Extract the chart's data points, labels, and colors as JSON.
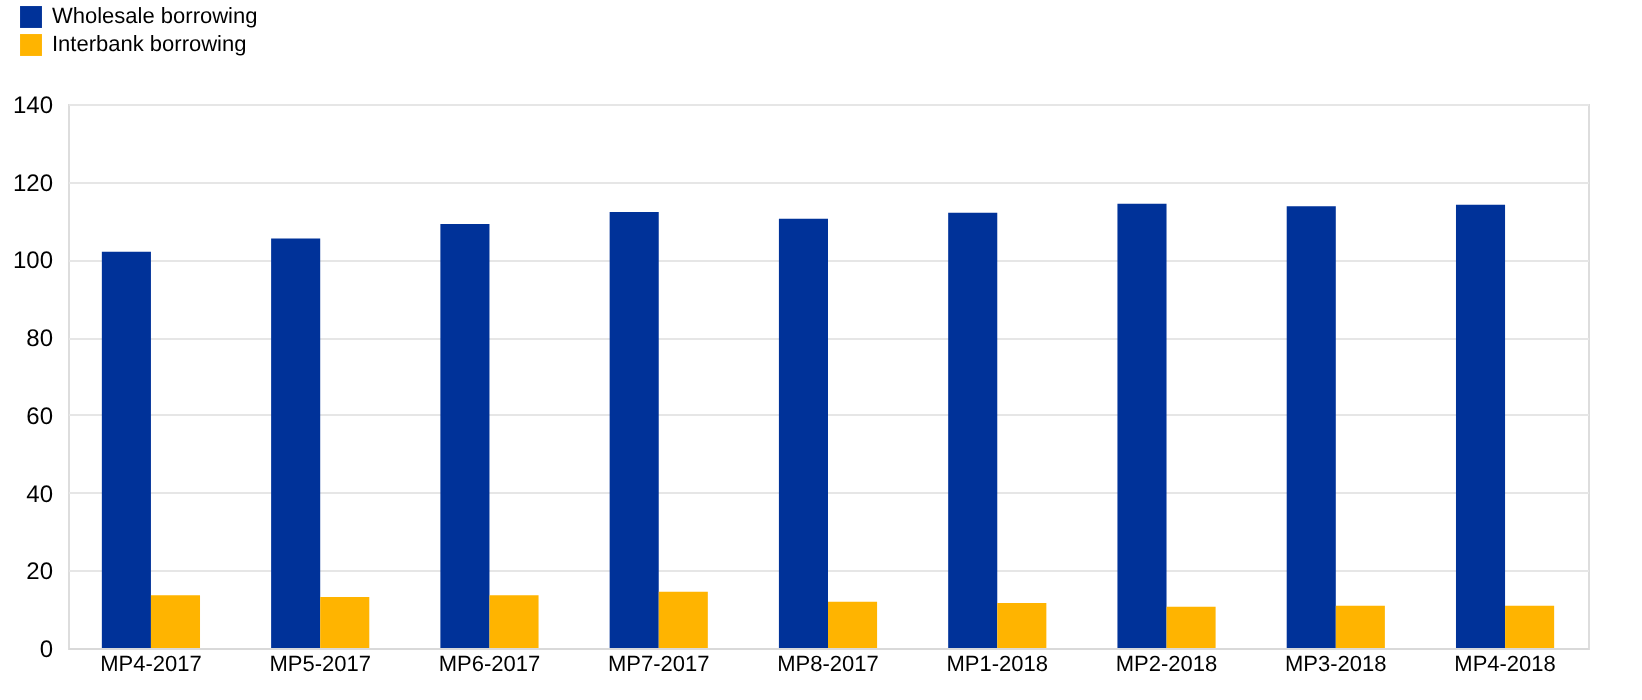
{
  "chart_data": {
    "type": "bar",
    "categories": [
      "MP4-2017",
      "MP5-2017",
      "MP6-2017",
      "MP7-2017",
      "MP8-2017",
      "MP1-2018",
      "MP2-2018",
      "MP3-2018",
      "MP4-2018"
    ],
    "series": [
      {
        "name": "Wholesale borrowing",
        "color": "#003299",
        "values": [
          102.0,
          105.4,
          109.1,
          112.2,
          110.5,
          112.0,
          114.3,
          113.7,
          114.1
        ]
      },
      {
        "name": "Interbank borrowing",
        "color": "#ffb400",
        "values": [
          13.6,
          13.1,
          13.6,
          14.5,
          11.9,
          11.6,
          10.6,
          10.9,
          10.9
        ]
      }
    ],
    "ylim": [
      0,
      140
    ],
    "yticks": [
      0,
      20,
      40,
      60,
      80,
      100,
      120,
      140
    ],
    "grid": "y",
    "legend": "top left"
  }
}
